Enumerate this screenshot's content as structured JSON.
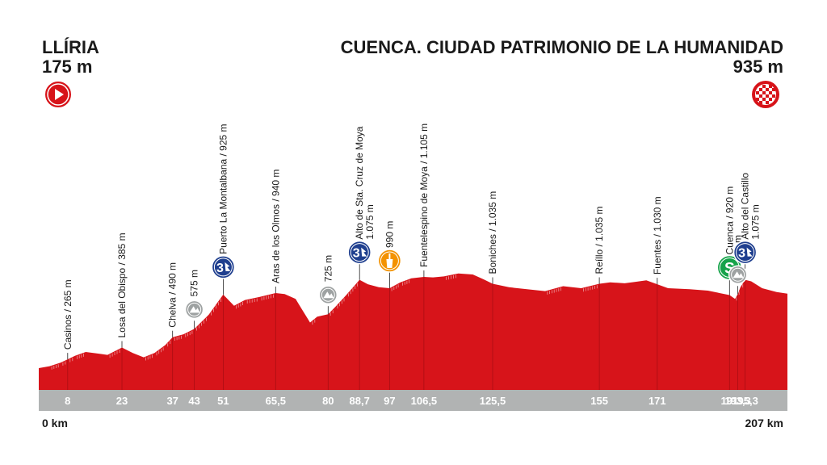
{
  "header": {
    "start_name": "LLÍRIA",
    "start_alt": "175 m",
    "finish_name": "CUENCA. CIUDAD PATRIMONIO DE LA HUMANIDAD",
    "finish_alt": "935 m"
  },
  "footer": {
    "start_km": "0 km",
    "end_km": "207 km"
  },
  "colors": {
    "profile": "#d7141a",
    "baseline": "#b1b3b3",
    "kom": "#1f3f8f",
    "sprint": "#16a34a",
    "food": "#f39200",
    "summit_grey": "#9ea2a2"
  },
  "chart_data": {
    "type": "area",
    "title": "",
    "xlabel": "",
    "ylabel": "",
    "xlim": [
      0,
      207
    ],
    "ylim": [
      0,
      1300
    ],
    "profile": [
      [
        0,
        175
      ],
      [
        3,
        195
      ],
      [
        6,
        230
      ],
      [
        8,
        265
      ],
      [
        10,
        300
      ],
      [
        13,
        340
      ],
      [
        16,
        325
      ],
      [
        19,
        310
      ],
      [
        23,
        385
      ],
      [
        26,
        330
      ],
      [
        29,
        285
      ],
      [
        32,
        330
      ],
      [
        35,
        410
      ],
      [
        37,
        490
      ],
      [
        40,
        520
      ],
      [
        43,
        575
      ],
      [
        47,
        720
      ],
      [
        51,
        925
      ],
      [
        54,
        810
      ],
      [
        57,
        870
      ],
      [
        61,
        900
      ],
      [
        65.5,
        940
      ],
      [
        68,
        930
      ],
      [
        71,
        880
      ],
      [
        73,
        760
      ],
      [
        75,
        640
      ],
      [
        77,
        700
      ],
      [
        80,
        725
      ],
      [
        82,
        800
      ],
      [
        85,
        920
      ],
      [
        88.7,
        1075
      ],
      [
        91,
        1030
      ],
      [
        94,
        1000
      ],
      [
        97,
        990
      ],
      [
        100,
        1050
      ],
      [
        103,
        1090
      ],
      [
        106.5,
        1105
      ],
      [
        109,
        1100
      ],
      [
        112,
        1110
      ],
      [
        116,
        1140
      ],
      [
        120,
        1130
      ],
      [
        123,
        1080
      ],
      [
        125.5,
        1035
      ],
      [
        130,
        1000
      ],
      [
        135,
        980
      ],
      [
        140,
        960
      ],
      [
        145,
        1010
      ],
      [
        150,
        990
      ],
      [
        155,
        1035
      ],
      [
        158,
        1050
      ],
      [
        162,
        1040
      ],
      [
        165,
        1055
      ],
      [
        168,
        1070
      ],
      [
        171,
        1030
      ],
      [
        174,
        990
      ],
      [
        180,
        980
      ],
      [
        185,
        965
      ],
      [
        191,
        920
      ],
      [
        192.5,
        880
      ],
      [
        193.3,
        930
      ],
      [
        194,
        1000
      ],
      [
        195.3,
        1075
      ],
      [
        197,
        1060
      ],
      [
        200,
        990
      ],
      [
        204,
        950
      ],
      [
        207,
        935
      ]
    ],
    "km_ticks": [
      "8",
      "23",
      "37",
      "43",
      "51",
      "65,5",
      "80",
      "88,7",
      "97",
      "106,5",
      "125,5",
      "155",
      "171",
      "191",
      "193,3",
      "195,3"
    ],
    "km_tick_values": [
      8,
      23,
      37,
      43,
      51,
      65.5,
      80,
      88.7,
      97,
      106.5,
      125.5,
      155,
      171,
      191,
      193.3,
      195.3
    ],
    "points": [
      {
        "km": 8,
        "alt": 265,
        "label": "Casinos / 265 m",
        "icon": "none"
      },
      {
        "km": 23,
        "alt": 385,
        "label": "Losa del Obispo / 385 m",
        "icon": "none"
      },
      {
        "km": 37,
        "alt": 490,
        "label": "Chelva / 490 m",
        "icon": "none"
      },
      {
        "km": 43,
        "alt": 575,
        "label": "575 m",
        "icon": "summit"
      },
      {
        "km": 51,
        "alt": 925,
        "label": "Puerto La Montalbana / 925 m",
        "icon": "kom"
      },
      {
        "km": 65.5,
        "alt": 940,
        "label": "Aras de los Olmos / 940 m",
        "icon": "none"
      },
      {
        "km": 80,
        "alt": 725,
        "label": "725 m",
        "icon": "summit"
      },
      {
        "km": 88.7,
        "alt": 1075,
        "label": "Alto de Sta. Cruz de Moya",
        "label2": "1.075 m",
        "icon": "kom"
      },
      {
        "km": 97,
        "alt": 990,
        "label": "990 m",
        "icon": "food"
      },
      {
        "km": 106.5,
        "alt": 1105,
        "label": "Fuentelespino de Moya / 1.105 m",
        "icon": "none"
      },
      {
        "km": 125.5,
        "alt": 1035,
        "label": "Boniches / 1.035 m",
        "icon": "none"
      },
      {
        "km": 155,
        "alt": 1035,
        "label": "Reíllo / 1.035 m",
        "icon": "none"
      },
      {
        "km": 171,
        "alt": 1030,
        "label": "Fuentes / 1.030 m",
        "icon": "none"
      },
      {
        "km": 191,
        "alt": 920,
        "label": "Cuenca / 920 m",
        "icon": "sprint"
      },
      {
        "km": 193.3,
        "alt": 930,
        "label": "930 m",
        "icon": "summit"
      },
      {
        "km": 195.3,
        "alt": 1075,
        "label": "Alto del Castillo",
        "label2": "1.075 m",
        "icon": "kom"
      }
    ]
  }
}
